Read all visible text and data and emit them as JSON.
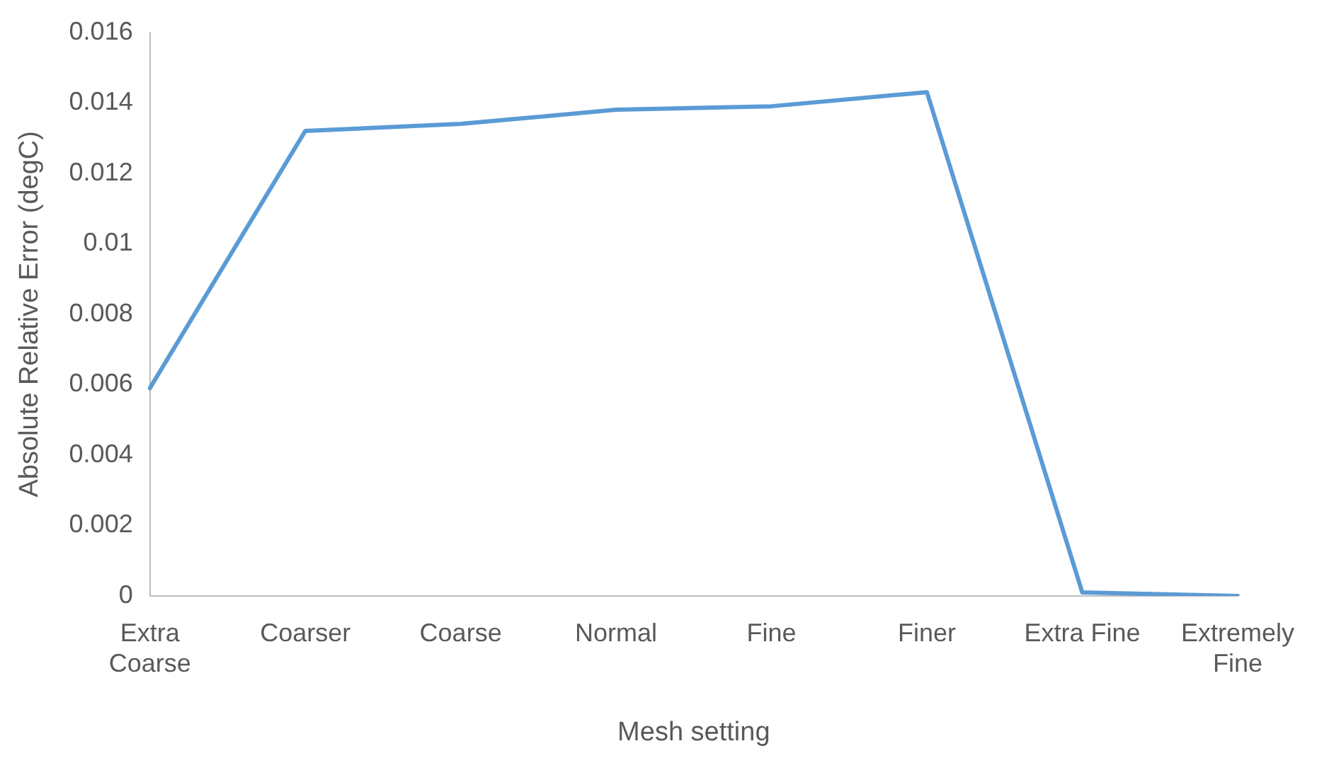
{
  "chart_data": {
    "type": "line",
    "xlabel": "Mesh setting",
    "ylabel": "Absolute Relative Error (degC)",
    "categories": [
      "Extra Coarse",
      "Coarser",
      "Coarse",
      "Normal",
      "Fine",
      "Finer",
      "Extra Fine",
      "Extremely Fine"
    ],
    "series": [
      {
        "color": "#5b9bd5",
        "values": [
          0.0059,
          0.0132,
          0.0134,
          0.0138,
          0.0139,
          0.0143,
          0.0001,
          0
        ]
      }
    ],
    "ylim": [
      0,
      0.016
    ],
    "yticks": [
      0,
      0.002,
      0.004,
      0.006,
      0.008,
      0.01,
      0.012,
      0.014,
      0.016
    ],
    "grid": false,
    "legend": false,
    "marker": "none",
    "line_style": "solid"
  }
}
